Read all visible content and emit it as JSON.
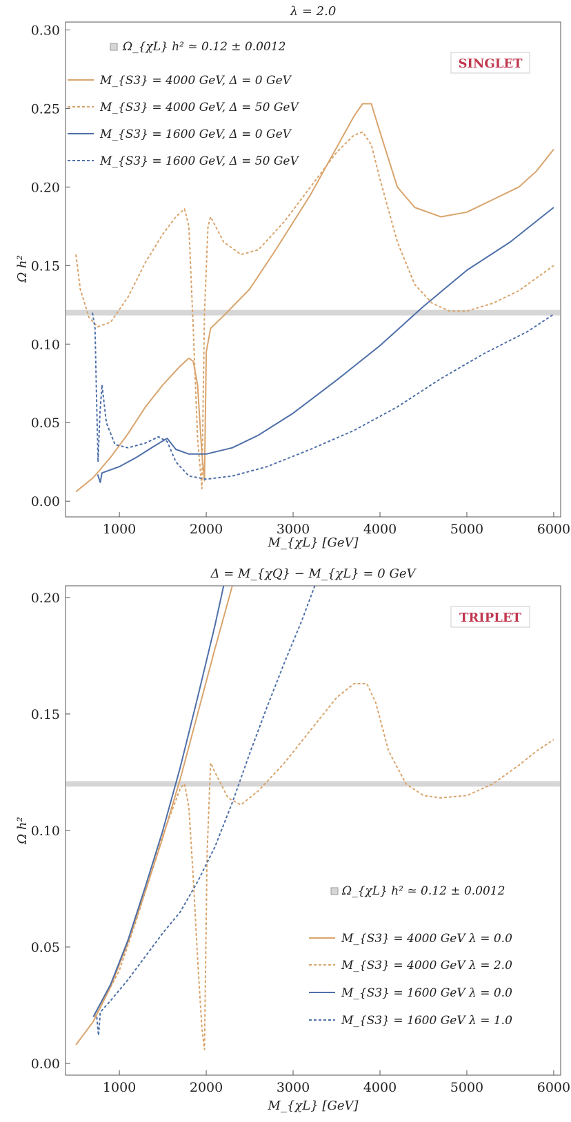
{
  "colors": {
    "orange": "#D9A46C",
    "blue": "#4E6FA8",
    "band": "#d6d6d6",
    "frame": "#555555",
    "badge": "#C0384E"
  },
  "chart_data": [
    {
      "type": "line",
      "title": "λ = 2.0",
      "xlabel": "M_{χL} [GeV]",
      "ylabel": "Ω h²",
      "xlim": [
        380,
        6080
      ],
      "ylim": [
        -0.01,
        0.305
      ],
      "xticks": [
        1000,
        2000,
        3000,
        4000,
        5000,
        6000
      ],
      "yticks": [
        0.0,
        0.05,
        0.1,
        0.15,
        0.2,
        0.25,
        0.3
      ],
      "ytick_labels": [
        "0.00",
        "0.05",
        "0.10",
        "0.15",
        "0.20",
        "0.25",
        "0.30"
      ],
      "badge": "SINGLET",
      "band": {
        "center": 0.12,
        "half_width": 0.0012,
        "label": "Ω_{χL} h² ≃ 0.12 ± 0.0012"
      },
      "legend_position": "top-left",
      "series": [
        {
          "name": "M_{S3} = 4000 GeV,    Δ = 0 GeV",
          "color": "orange",
          "dashed": false,
          "points": [
            [
              500,
              0.006
            ],
            [
              700,
              0.015
            ],
            [
              900,
              0.028
            ],
            [
              1100,
              0.043
            ],
            [
              1300,
              0.06
            ],
            [
              1500,
              0.074
            ],
            [
              1700,
              0.086
            ],
            [
              1800,
              0.091
            ],
            [
              1850,
              0.089
            ],
            [
              1900,
              0.074
            ],
            [
              1950,
              0.03
            ],
            [
              1980,
              0.013
            ],
            [
              2000,
              0.095
            ],
            [
              2050,
              0.11
            ],
            [
              2200,
              0.118
            ],
            [
              2500,
              0.135
            ],
            [
              2800,
              0.16
            ],
            [
              3200,
              0.195
            ],
            [
              3500,
              0.225
            ],
            [
              3700,
              0.245
            ],
            [
              3800,
              0.253
            ],
            [
              3900,
              0.253
            ],
            [
              4000,
              0.235
            ],
            [
              4200,
              0.2
            ],
            [
              4400,
              0.187
            ],
            [
              4700,
              0.181
            ],
            [
              5000,
              0.184
            ],
            [
              5300,
              0.192
            ],
            [
              5600,
              0.2
            ],
            [
              5800,
              0.21
            ],
            [
              6000,
              0.224
            ]
          ]
        },
        {
          "name": "M_{S3} = 4000 GeV,    Δ = 50 GeV",
          "color": "orange",
          "dashed": true,
          "points": [
            [
              500,
              0.157
            ],
            [
              550,
              0.135
            ],
            [
              650,
              0.117
            ],
            [
              750,
              0.111
            ],
            [
              900,
              0.114
            ],
            [
              1100,
              0.13
            ],
            [
              1300,
              0.152
            ],
            [
              1500,
              0.17
            ],
            [
              1650,
              0.181
            ],
            [
              1750,
              0.186
            ],
            [
              1800,
              0.175
            ],
            [
              1850,
              0.11
            ],
            [
              1900,
              0.04
            ],
            [
              1950,
              0.008
            ],
            [
              1980,
              0.12
            ],
            [
              2020,
              0.175
            ],
            [
              2050,
              0.181
            ],
            [
              2200,
              0.165
            ],
            [
              2400,
              0.157
            ],
            [
              2600,
              0.16
            ],
            [
              2900,
              0.178
            ],
            [
              3200,
              0.2
            ],
            [
              3500,
              0.222
            ],
            [
              3700,
              0.233
            ],
            [
              3800,
              0.235
            ],
            [
              3900,
              0.227
            ],
            [
              4000,
              0.205
            ],
            [
              4200,
              0.165
            ],
            [
              4400,
              0.138
            ],
            [
              4600,
              0.126
            ],
            [
              4800,
              0.121
            ],
            [
              5000,
              0.121
            ],
            [
              5300,
              0.126
            ],
            [
              5600,
              0.134
            ],
            [
              5800,
              0.142
            ],
            [
              6000,
              0.15
            ]
          ]
        },
        {
          "name": "M_{S3} = 1600 GeV,    Δ = 0 GeV",
          "color": "blue",
          "dashed": false,
          "points": [
            [
              750,
              0.017
            ],
            [
              780,
              0.012
            ],
            [
              800,
              0.018
            ],
            [
              1000,
              0.022
            ],
            [
              1200,
              0.028
            ],
            [
              1400,
              0.035
            ],
            [
              1550,
              0.04
            ],
            [
              1650,
              0.033
            ],
            [
              1800,
              0.03
            ],
            [
              2000,
              0.03
            ],
            [
              2300,
              0.034
            ],
            [
              2600,
              0.042
            ],
            [
              3000,
              0.056
            ],
            [
              3500,
              0.077
            ],
            [
              4000,
              0.099
            ],
            [
              4500,
              0.124
            ],
            [
              5000,
              0.147
            ],
            [
              5500,
              0.165
            ],
            [
              6000,
              0.187
            ]
          ]
        },
        {
          "name": "M_{S3} = 1600 GeV,    Δ = 50 GeV",
          "color": "blue",
          "dashed": true,
          "points": [
            [
              690,
              0.12
            ],
            [
              720,
              0.11
            ],
            [
              740,
              0.06
            ],
            [
              755,
              0.025
            ],
            [
              775,
              0.055
            ],
            [
              800,
              0.074
            ],
            [
              850,
              0.05
            ],
            [
              950,
              0.036
            ],
            [
              1100,
              0.034
            ],
            [
              1300,
              0.037
            ],
            [
              1450,
              0.041
            ],
            [
              1550,
              0.038
            ],
            [
              1650,
              0.025
            ],
            [
              1800,
              0.016
            ],
            [
              2000,
              0.014
            ],
            [
              2300,
              0.016
            ],
            [
              2700,
              0.022
            ],
            [
              3200,
              0.033
            ],
            [
              3700,
              0.045
            ],
            [
              4200,
              0.06
            ],
            [
              4700,
              0.078
            ],
            [
              5200,
              0.094
            ],
            [
              5700,
              0.108
            ],
            [
              6000,
              0.119
            ]
          ]
        }
      ]
    },
    {
      "type": "line",
      "title": "Δ = M_{χQ} − M_{χL} = 0 GeV",
      "xlabel": "M_{χL} [GeV]",
      "ylabel": "Ω h²",
      "xlim": [
        380,
        6080
      ],
      "ylim": [
        -0.005,
        0.205
      ],
      "xticks": [
        1000,
        2000,
        3000,
        4000,
        5000,
        6000
      ],
      "yticks": [
        0.0,
        0.05,
        0.1,
        0.15,
        0.2
      ],
      "ytick_labels": [
        "0.00",
        "0.05",
        "0.10",
        "0.15",
        "0.20"
      ],
      "badge": "TRIPLET",
      "band": {
        "center": 0.12,
        "half_width": 0.0012,
        "label": "Ω_{χL} h² ≃ 0.12 ± 0.0012"
      },
      "legend_position": "bottom-right",
      "series": [
        {
          "name": "M_{S3} = 4000 GeV    λ = 0.0",
          "color": "orange",
          "dashed": false,
          "points": [
            [
              500,
              0.008
            ],
            [
              700,
              0.018
            ],
            [
              900,
              0.033
            ],
            [
              1100,
              0.052
            ],
            [
              1300,
              0.074
            ],
            [
              1500,
              0.097
            ],
            [
              1700,
              0.122
            ],
            [
              1900,
              0.15
            ],
            [
              2100,
              0.178
            ],
            [
              2300,
              0.205
            ]
          ]
        },
        {
          "name": "M_{S3} = 4000 GeV    λ = 2.0",
          "color": "orange",
          "dashed": true,
          "points": [
            [
              720,
              0.02
            ],
            [
              1000,
              0.04
            ],
            [
              1200,
              0.062
            ],
            [
              1500,
              0.098
            ],
            [
              1700,
              0.118
            ],
            [
              1750,
              0.12
            ],
            [
              1800,
              0.11
            ],
            [
              1850,
              0.08
            ],
            [
              1900,
              0.045
            ],
            [
              1950,
              0.015
            ],
            [
              1980,
              0.006
            ],
            [
              2010,
              0.09
            ],
            [
              2050,
              0.129
            ],
            [
              2100,
              0.125
            ],
            [
              2250,
              0.114
            ],
            [
              2400,
              0.111
            ],
            [
              2600,
              0.117
            ],
            [
              2900,
              0.129
            ],
            [
              3200,
              0.143
            ],
            [
              3500,
              0.157
            ],
            [
              3700,
              0.163
            ],
            [
              3850,
              0.163
            ],
            [
              3950,
              0.155
            ],
            [
              4100,
              0.134
            ],
            [
              4300,
              0.12
            ],
            [
              4500,
              0.115
            ],
            [
              4700,
              0.114
            ],
            [
              5000,
              0.115
            ],
            [
              5300,
              0.12
            ],
            [
              5600,
              0.128
            ],
            [
              5800,
              0.134
            ],
            [
              6000,
              0.139
            ]
          ]
        },
        {
          "name": "M_{S3} = 1600 GeV    λ = 0.0",
          "color": "blue",
          "dashed": false,
          "points": [
            [
              700,
              0.02
            ],
            [
              900,
              0.034
            ],
            [
              1100,
              0.053
            ],
            [
              1300,
              0.076
            ],
            [
              1500,
              0.1
            ],
            [
              1700,
              0.127
            ],
            [
              1900,
              0.157
            ],
            [
              2100,
              0.188
            ],
            [
              2200,
              0.205
            ]
          ]
        },
        {
          "name": "M_{S3} = 1600 GeV    λ = 1.0",
          "color": "blue",
          "dashed": true,
          "points": [
            [
              740,
              0.02
            ],
            [
              760,
              0.012
            ],
            [
              780,
              0.022
            ],
            [
              900,
              0.027
            ],
            [
              1100,
              0.036
            ],
            [
              1300,
              0.046
            ],
            [
              1500,
              0.056
            ],
            [
              1700,
              0.065
            ],
            [
              1900,
              0.078
            ],
            [
              2100,
              0.093
            ],
            [
              2300,
              0.112
            ],
            [
              2500,
              0.133
            ],
            [
              2700,
              0.153
            ],
            [
              2900,
              0.172
            ],
            [
              3100,
              0.19
            ],
            [
              3250,
              0.205
            ]
          ]
        }
      ]
    }
  ]
}
